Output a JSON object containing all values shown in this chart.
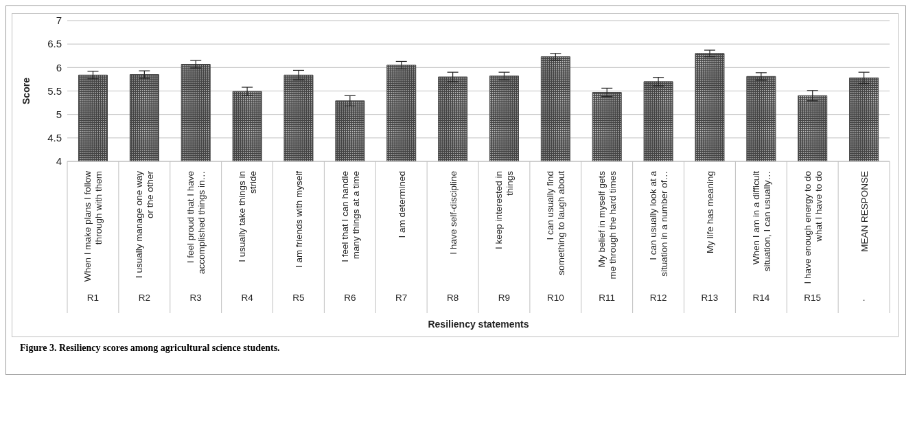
{
  "chart_data": {
    "type": "bar",
    "title": "Figure 3. Resiliency scores among agricultural science students.",
    "xlabel": "Resiliency statements",
    "ylabel": "Score",
    "categories": [
      "When I make plans I follow through with them",
      "I usually manage one way or the other",
      "I feel proud that I have accomplished things in…",
      "I usually take things in stride",
      "I am friends with myself",
      "I feel that I can handle many things at a time",
      "I am determined",
      "I have self-discipline",
      "I keep interested in things",
      "I can usually find something to laugh about",
      "My belief in myself gets me through the hard times",
      "I can usually look at a situation in a number of…",
      "My life has meaning",
      "When I am in a difficult situation, I can usually…",
      "I have enough energy to do what I have to do",
      "MEAN RESPONSE"
    ],
    "values": [
      5.84,
      5.85,
      6.07,
      5.49,
      5.84,
      5.29,
      6.05,
      5.8,
      5.82,
      6.23,
      5.47,
      5.7,
      6.3,
      5.81,
      5.4,
      5.78
    ],
    "errors": [
      0.08,
      0.08,
      0.08,
      0.09,
      0.1,
      0.11,
      0.08,
      0.1,
      0.08,
      0.07,
      0.09,
      0.09,
      0.07,
      0.08,
      0.11,
      0.12
    ],
    "color": "#444444",
    "ylim": [
      4,
      7
    ],
    "yticks": [
      4,
      4.5,
      5,
      5.5,
      6,
      6.5,
      7
    ],
    "grid": "y",
    "annotations": [
      "R1",
      "R2",
      "R3",
      "R4",
      "R5",
      "R6",
      "R7",
      "R8",
      "R9",
      "R10",
      "R11",
      "R12",
      "R13",
      "R14",
      "R15",
      "."
    ]
  }
}
